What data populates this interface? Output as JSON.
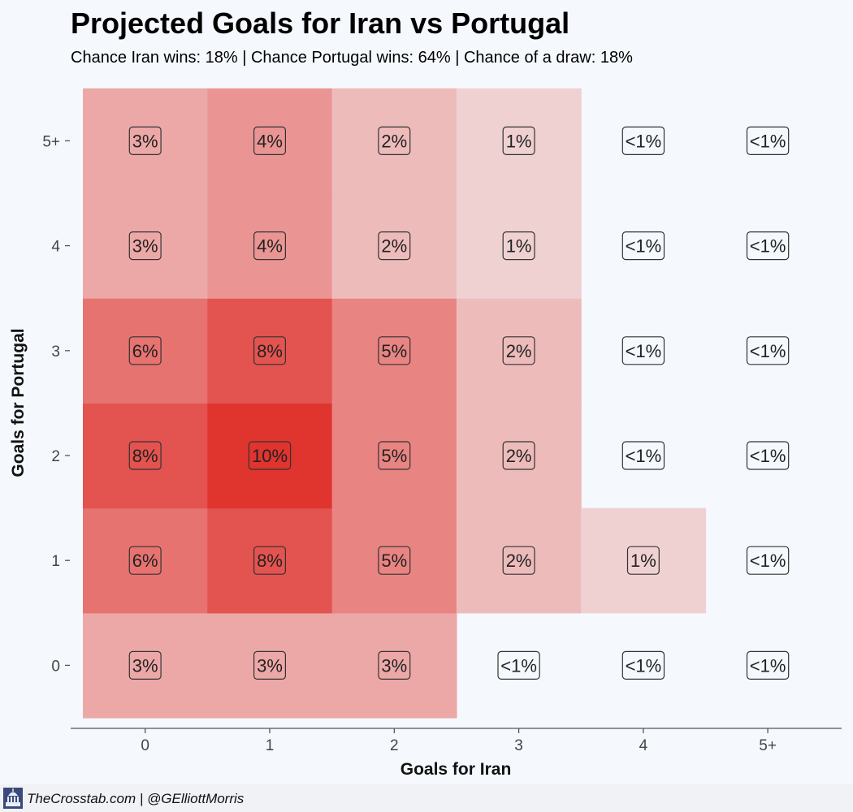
{
  "chart_data": {
    "type": "heatmap",
    "title": "Projected Goals for Iran vs Portugal",
    "subtitle": "Chance Iran wins: 18% | Chance Portugal wins: 64% | Chance of a draw: 18%",
    "xlabel": "Goals for Iran",
    "ylabel": "Goals for Portugal",
    "x_categories": [
      "0",
      "1",
      "2",
      "3",
      "4",
      "5+"
    ],
    "y_categories": [
      "0",
      "1",
      "2",
      "3",
      "4",
      "5+"
    ],
    "grid": false,
    "colors": {
      "high": "#e0342f",
      "low": "#f3eff1",
      "background": "#f5f9fe"
    },
    "cells": [
      {
        "x": "0",
        "y": "0",
        "value": 3,
        "label": "3%"
      },
      {
        "x": "1",
        "y": "0",
        "value": 3,
        "label": "3%"
      },
      {
        "x": "2",
        "y": "0",
        "value": 3,
        "label": "3%"
      },
      {
        "x": "3",
        "y": "0",
        "value": 0,
        "label": "<1%"
      },
      {
        "x": "4",
        "y": "0",
        "value": 0,
        "label": "<1%"
      },
      {
        "x": "5+",
        "y": "0",
        "value": 0,
        "label": "<1%"
      },
      {
        "x": "0",
        "y": "1",
        "value": 6,
        "label": "6%"
      },
      {
        "x": "1",
        "y": "1",
        "value": 8,
        "label": "8%"
      },
      {
        "x": "2",
        "y": "1",
        "value": 5,
        "label": "5%"
      },
      {
        "x": "3",
        "y": "1",
        "value": 2,
        "label": "2%"
      },
      {
        "x": "4",
        "y": "1",
        "value": 1,
        "label": "1%"
      },
      {
        "x": "5+",
        "y": "1",
        "value": 0,
        "label": "<1%"
      },
      {
        "x": "0",
        "y": "2",
        "value": 8,
        "label": "8%"
      },
      {
        "x": "1",
        "y": "2",
        "value": 10,
        "label": "10%"
      },
      {
        "x": "2",
        "y": "2",
        "value": 5,
        "label": "5%"
      },
      {
        "x": "3",
        "y": "2",
        "value": 2,
        "label": "2%"
      },
      {
        "x": "4",
        "y": "2",
        "value": 0,
        "label": "<1%"
      },
      {
        "x": "5+",
        "y": "2",
        "value": 0,
        "label": "<1%"
      },
      {
        "x": "0",
        "y": "3",
        "value": 6,
        "label": "6%"
      },
      {
        "x": "1",
        "y": "3",
        "value": 8,
        "label": "8%"
      },
      {
        "x": "2",
        "y": "3",
        "value": 5,
        "label": "5%"
      },
      {
        "x": "3",
        "y": "3",
        "value": 2,
        "label": "2%"
      },
      {
        "x": "4",
        "y": "3",
        "value": 0,
        "label": "<1%"
      },
      {
        "x": "5+",
        "y": "3",
        "value": 0,
        "label": "<1%"
      },
      {
        "x": "0",
        "y": "4",
        "value": 3,
        "label": "3%"
      },
      {
        "x": "1",
        "y": "4",
        "value": 4,
        "label": "4%"
      },
      {
        "x": "2",
        "y": "4",
        "value": 2,
        "label": "2%"
      },
      {
        "x": "3",
        "y": "4",
        "value": 1,
        "label": "1%"
      },
      {
        "x": "4",
        "y": "4",
        "value": 0,
        "label": "<1%"
      },
      {
        "x": "5+",
        "y": "4",
        "value": 0,
        "label": "<1%"
      },
      {
        "x": "0",
        "y": "5+",
        "value": 3,
        "label": "3%"
      },
      {
        "x": "1",
        "y": "5+",
        "value": 4,
        "label": "4%"
      },
      {
        "x": "2",
        "y": "5+",
        "value": 2,
        "label": "2%"
      },
      {
        "x": "3",
        "y": "5+",
        "value": 1,
        "label": "1%"
      },
      {
        "x": "4",
        "y": "5+",
        "value": 0,
        "label": "<1%"
      },
      {
        "x": "5+",
        "y": "5+",
        "value": 0,
        "label": "<1%"
      }
    ]
  },
  "footer": {
    "credit": "TheCrosstab.com | @GElliottMorris",
    "logo_icon": "capitol-icon"
  }
}
